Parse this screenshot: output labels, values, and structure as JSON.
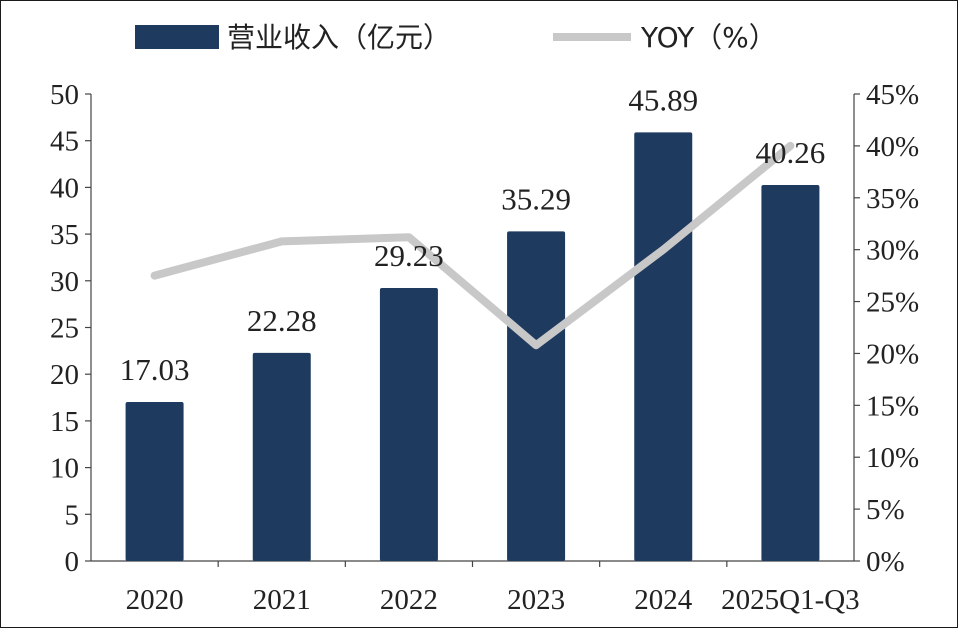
{
  "chart_data": {
    "type": "bar+line",
    "legend": {
      "bar_label": "营业收入（亿元）",
      "line_label": "YOY（%）",
      "position": "top"
    },
    "categories": [
      "2020",
      "2021",
      "2022",
      "2023",
      "2024",
      "2025Q1-Q3"
    ],
    "bar_series": {
      "name": "营业收入（亿元）",
      "values": [
        17.03,
        22.28,
        29.23,
        35.29,
        45.89,
        40.26
      ],
      "data_labels": [
        "17.03",
        "22.28",
        "29.23",
        "35.29",
        "45.89",
        "40.26"
      ],
      "color": "#1f3a5f"
    },
    "line_series": {
      "name": "YOY（%）",
      "values": [
        27.5,
        30.8,
        31.2,
        20.8,
        30.0,
        40.0
      ],
      "color": "#c8c8c8"
    },
    "y_left": {
      "min": 0,
      "max": 50,
      "step": 5,
      "tick_labels": [
        "0",
        "5",
        "10",
        "15",
        "20",
        "25",
        "30",
        "35",
        "40",
        "45",
        "50"
      ]
    },
    "y_right": {
      "min": 0,
      "max": 45,
      "step": 5,
      "tick_labels": [
        "0%",
        "5%",
        "10%",
        "15%",
        "20%",
        "25%",
        "30%",
        "35%",
        "40%",
        "45%"
      ]
    },
    "grid": false
  }
}
